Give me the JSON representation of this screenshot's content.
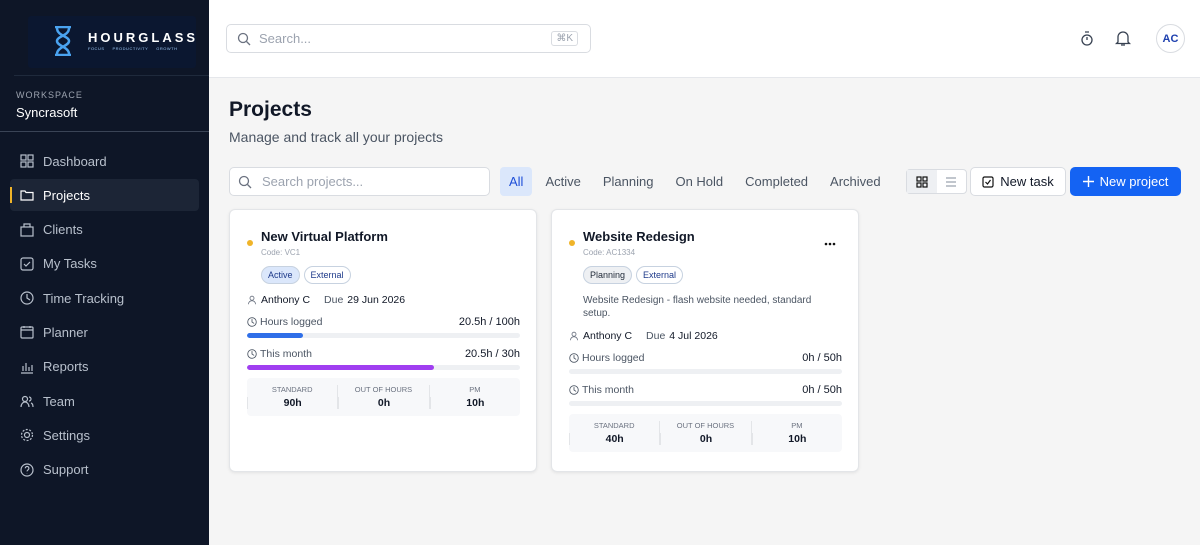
{
  "logo": {
    "name": "HOURGLASS",
    "tagline": [
      "FOCUS",
      "PRODUCTIVITY",
      "GROWTH"
    ]
  },
  "workspace": {
    "label": "WORKSPACE",
    "name": "Syncrasoft"
  },
  "nav": [
    {
      "label": "Dashboard"
    },
    {
      "label": "Projects",
      "active": true
    },
    {
      "label": "Clients"
    },
    {
      "label": "My Tasks"
    },
    {
      "label": "Time Tracking"
    },
    {
      "label": "Planner"
    },
    {
      "label": "Reports"
    },
    {
      "label": "Team"
    },
    {
      "label": "Settings"
    },
    {
      "label": "Support"
    }
  ],
  "search": {
    "placeholder": "Search...",
    "shortcut": "⌘K"
  },
  "user": {
    "initials": "AC"
  },
  "page": {
    "title": "Projects",
    "subtitle": "Manage and track all your projects"
  },
  "toolbar": {
    "search_placeholder": "Search projects...",
    "filters": [
      {
        "label": "All",
        "active": true
      },
      {
        "label": "Active"
      },
      {
        "label": "Planning"
      },
      {
        "label": "On Hold"
      },
      {
        "label": "Completed"
      },
      {
        "label": "Archived"
      }
    ],
    "new_task": "New task",
    "new_project": "New project"
  },
  "projects": [
    {
      "name": "New Virtual Platform",
      "code": "Code: VC1",
      "status_color": "#f0b429",
      "tags": [
        {
          "text": "Active",
          "background": "#dbe7fb",
          "color": "#1e3a8a"
        },
        {
          "text": "External",
          "background": "#ffffff",
          "color": "#1e3a8a"
        }
      ],
      "owner": "Anthony C",
      "due_label": "Due",
      "due": "29 Jun 2026",
      "metrics": [
        {
          "label": "Hours logged",
          "value_label": "20.5h / 100h",
          "value": 20.5,
          "max": 100,
          "color": "#2f6fe8"
        },
        {
          "label": "This month",
          "value_label": "20.5h / 30h",
          "value": 20.5,
          "max": 30,
          "color": "#a03ef0"
        }
      ],
      "breakdown": [
        {
          "label": "STANDARD",
          "value": "90h"
        },
        {
          "label": "OUT OF HOURS",
          "value": "0h"
        },
        {
          "label": "PM",
          "value": "10h"
        }
      ]
    },
    {
      "name": "Website Redesign",
      "code": "Code: AC1334",
      "status_color": "#f0b429",
      "menu": true,
      "tags": [
        {
          "text": "Planning",
          "background": "#eef0f3",
          "color": "#1f2937"
        },
        {
          "text": "External",
          "background": "#ffffff",
          "color": "#1e3a8a"
        }
      ],
      "description": "Website Redesign - flash website needed, standard setup.",
      "owner": "Anthony C",
      "due_label": "Due",
      "due": "4 Jul 2026",
      "metrics": [
        {
          "label": "Hours logged",
          "value_label": "0h / 50h",
          "value": 0,
          "max": 50,
          "color": "#2f6fe8"
        },
        {
          "label": "This month",
          "value_label": "0h / 50h",
          "value": 0,
          "max": 50,
          "color": "#a03ef0"
        }
      ],
      "breakdown": [
        {
          "label": "STANDARD",
          "value": "40h"
        },
        {
          "label": "OUT OF HOURS",
          "value": "0h"
        },
        {
          "label": "PM",
          "value": "10h"
        }
      ]
    }
  ]
}
